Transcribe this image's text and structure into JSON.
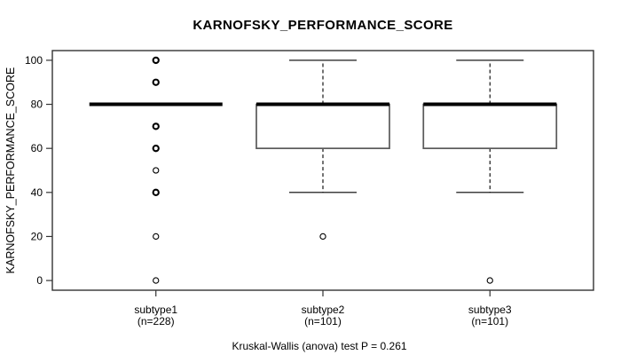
{
  "title": "KARNOFSKY_PERFORMANCE_SCORE",
  "ylabel": "KARNOFSKY_PERFORMANCE_SCORE",
  "caption": "Kruskal-Wallis (anova) test P = 0.261",
  "chart_data": {
    "type": "boxplot",
    "title": "KARNOFSKY_PERFORMANCE_SCORE",
    "xlabel": "",
    "ylabel": "KARNOFSKY_PERFORMANCE_SCORE",
    "footnote": "Kruskal-Wallis (anova) test P = 0.261",
    "p_value": 0.261,
    "yticks": [
      0,
      20,
      40,
      60,
      80,
      100
    ],
    "ylim": [
      -4.4,
      104.4
    ],
    "grid": false,
    "legend": "none",
    "categories": [
      "subtype1",
      "subtype2",
      "subtype3"
    ],
    "groups": [
      {
        "label": "subtype1",
        "n_label": "(n=228)",
        "n": 228,
        "median": 80,
        "q1": 80,
        "q3": 80,
        "whisker_low": 80,
        "whisker_high": 80,
        "outliers": [
          {
            "value": 100,
            "bold": true
          },
          {
            "value": 90,
            "bold": true
          },
          {
            "value": 70,
            "bold": true
          },
          {
            "value": 60,
            "bold": true
          },
          {
            "value": 50,
            "bold": false
          },
          {
            "value": 40,
            "bold": true
          },
          {
            "value": 20,
            "bold": false
          },
          {
            "value": 0,
            "bold": false
          }
        ]
      },
      {
        "label": "subtype2",
        "n_label": "(n=101)",
        "n": 101,
        "median": 80,
        "q1": 60,
        "q3": 80,
        "whisker_low": 40,
        "whisker_high": 100,
        "outliers": [
          {
            "value": 20,
            "bold": false
          }
        ]
      },
      {
        "label": "subtype3",
        "n_label": "(n=101)",
        "n": 101,
        "median": 80,
        "q1": 60,
        "q3": 80,
        "whisker_low": 40,
        "whisker_high": 100,
        "outliers": [
          {
            "value": 0,
            "bold": false
          }
        ]
      }
    ],
    "colors": {
      "frame": "#333333",
      "box_border": "#595959",
      "median": "#000000",
      "whisker": "#000000",
      "outlier": "#000000",
      "text": "#000000",
      "background": "#ffffff"
    }
  }
}
